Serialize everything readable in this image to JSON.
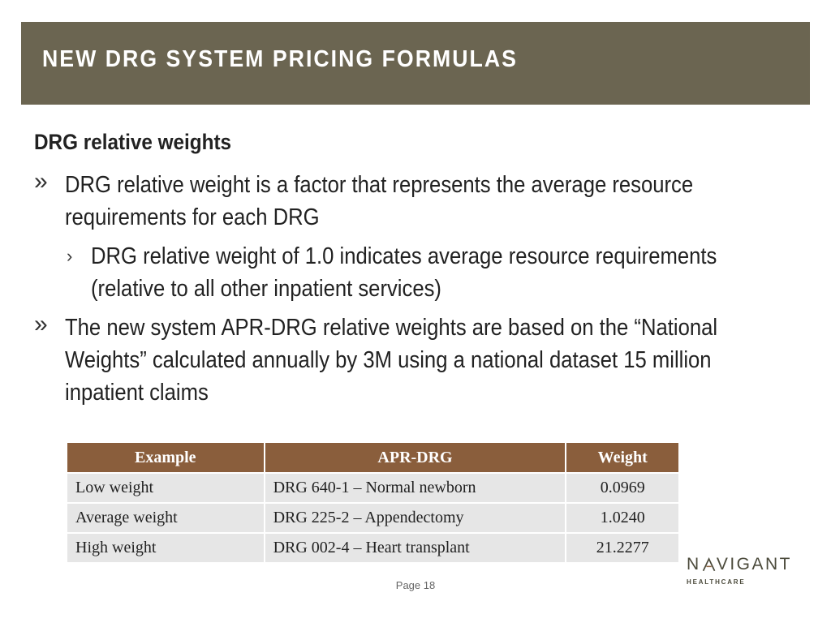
{
  "header": {
    "title": "NEW DRG SYSTEM PRICING FORMULAS"
  },
  "content": {
    "heading": "DRG relative weights",
    "bullet_marker": "»",
    "sub_marker": "›",
    "bullets": [
      {
        "text": "DRG relative weight is a factor that represents the average resource requirements for each DRG",
        "sub": "DRG relative weight of 1.0 indicates average resource requirements (relative to all other inpatient services)"
      },
      {
        "text": "The new system APR-DRG relative weights are based on the “National Weights” calculated annually by 3M using a national dataset 15 million inpatient claims"
      }
    ]
  },
  "table": {
    "headers": [
      "Example",
      "APR-DRG",
      "Weight"
    ],
    "rows": [
      [
        "Low weight",
        "DRG 640-1 – Normal newborn",
        "0.0969"
      ],
      [
        "Average weight",
        "DRG 225-2 – Appendectomy",
        "1.0240"
      ],
      [
        "High weight",
        "DRG 002-4 – Heart transplant",
        "21.2277"
      ]
    ]
  },
  "footer": {
    "page": "Page 18"
  },
  "logo": {
    "main_left": "N",
    "main_right": "VIGANT",
    "sub": "HEALTHCARE"
  },
  "colors": {
    "title_bar": "#6b6551",
    "table_header": "#8a5e3c",
    "table_cell": "#e6e6e6",
    "logo": "#4b4a3b"
  }
}
